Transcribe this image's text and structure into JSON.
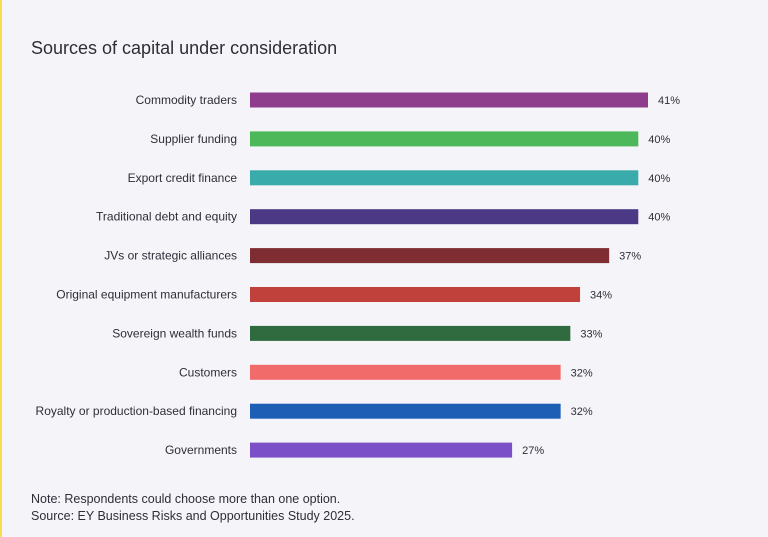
{
  "title": "Sources of capital under consideration",
  "chart_data": {
    "type": "bar",
    "orientation": "horizontal",
    "title": "Sources of capital under consideration",
    "categories": [
      "Commodity traders",
      "Supplier funding",
      "Export credit finance",
      "Traditional debt and equity",
      "JVs or strategic alliances",
      "Original equipment manufacturers",
      "Sovereign wealth funds",
      "Customers",
      "Royalty or production-based financing",
      "Governments"
    ],
    "values": [
      41,
      40,
      40,
      40,
      37,
      34,
      33,
      32,
      32,
      27
    ],
    "value_labels": [
      "41%",
      "40%",
      "40%",
      "40%",
      "37%",
      "34%",
      "33%",
      "32%",
      "32%",
      "27%"
    ],
    "colors": [
      "#8e3d8c",
      "#4cb85a",
      "#3aabab",
      "#4b3986",
      "#7e2e33",
      "#c0413b",
      "#2f6b3f",
      "#f26b6b",
      "#1d5fb5",
      "#7b4fc8"
    ],
    "xlim": [
      0,
      41
    ],
    "xlabel": "",
    "ylabel": "",
    "grid": false,
    "legend": "none"
  },
  "notes": {
    "note": "Note: Respondents could choose more than one option.",
    "source": "Source: EY Business Risks and Opportunities Study 2025."
  }
}
